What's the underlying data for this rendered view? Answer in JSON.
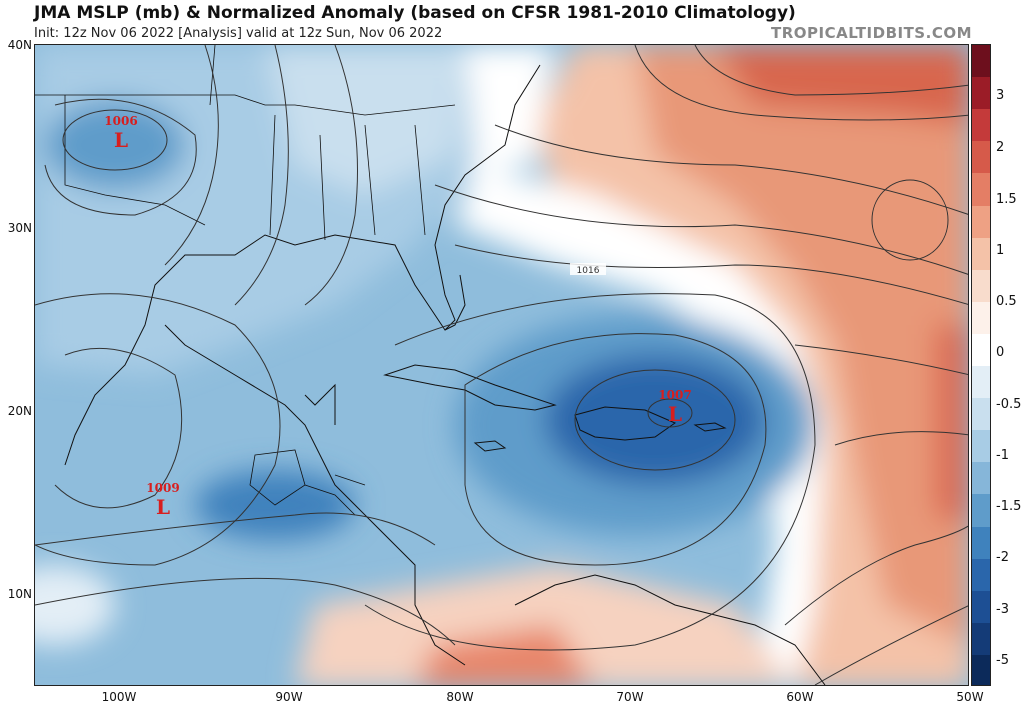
{
  "header": {
    "title": "JMA MSLP (mb) & Normalized Anomaly (based on CFSR 1981-2010 Climatology)",
    "subtitle": "Init: 12z Nov 06 2022   [Analysis]   valid at 12z Sun, Nov 06 2022",
    "brand": "TROPICALTIDBITS.COM"
  },
  "axes": {
    "lat_labels": [
      "40N",
      "30N",
      "20N",
      "10N"
    ],
    "lon_labels": [
      "100W",
      "90W",
      "80W",
      "70W",
      "60W",
      "50W"
    ]
  },
  "colorbar": {
    "labels": [
      "3",
      "2",
      "1.5",
      "1",
      "0.5",
      "0",
      "-0.5",
      "-1",
      "-1.5",
      "-2",
      "-3",
      "-5"
    ],
    "colors": [
      "#6d0f1d",
      "#9b1c27",
      "#c43a3a",
      "#d65a4a",
      "#e47e65",
      "#eea184",
      "#f4c2a8",
      "#f8dccc",
      "#fdf1ea",
      "#ffffff",
      "#e3eef6",
      "#c9dfee",
      "#a8cce5",
      "#86b6d9",
      "#5f9cca",
      "#3f82bd",
      "#2a66ab",
      "#1d4f94",
      "#143b77",
      "#0c2a5a"
    ]
  },
  "lows": [
    {
      "pressure": "1006",
      "symbol": "L"
    },
    {
      "pressure": "1007",
      "symbol": "L"
    },
    {
      "pressure": "1009",
      "symbol": "L"
    }
  ],
  "isobar_labels": [
    "1016"
  ]
}
